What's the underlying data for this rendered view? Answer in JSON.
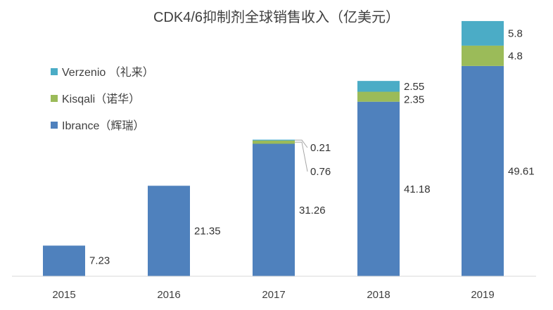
{
  "chart_data": {
    "type": "bar",
    "stacked": true,
    "title": "CDK4/6抑制剂全球销售收入（亿美元）",
    "categories": [
      "2015",
      "2016",
      "2017",
      "2018",
      "2019"
    ],
    "series": [
      {
        "name": "Ibrance（辉瑞）",
        "color": "#4F81BD",
        "values": [
          7.23,
          21.35,
          31.26,
          41.18,
          49.61
        ]
      },
      {
        "name": "Kisqali（诺华）",
        "color": "#9BBB59",
        "values": [
          null,
          null,
          0.76,
          2.35,
          4.8
        ]
      },
      {
        "name": "Verzenio （礼来）",
        "color": "#4BACC6",
        "values": [
          null,
          null,
          0.21,
          2.55,
          5.8
        ]
      }
    ],
    "data_labels": {
      "Ibrance（辉瑞）": [
        "7.23",
        "21.35",
        "31.26",
        "41.18",
        "49.61"
      ],
      "Kisqali（诺华）": [
        null,
        null,
        "0.76",
        "2.35",
        "4.8"
      ],
      "Verzenio （礼来）": [
        null,
        null,
        "0.21",
        "2.55",
        "5.8"
      ]
    },
    "legend_order": [
      "Verzenio （礼来）",
      "Kisqali（诺华）",
      "Ibrance（辉瑞）"
    ],
    "legend_position": "top-left",
    "ylim": [
      0,
      60.2
    ],
    "grid": false,
    "xlabel": "",
    "ylabel": ""
  }
}
